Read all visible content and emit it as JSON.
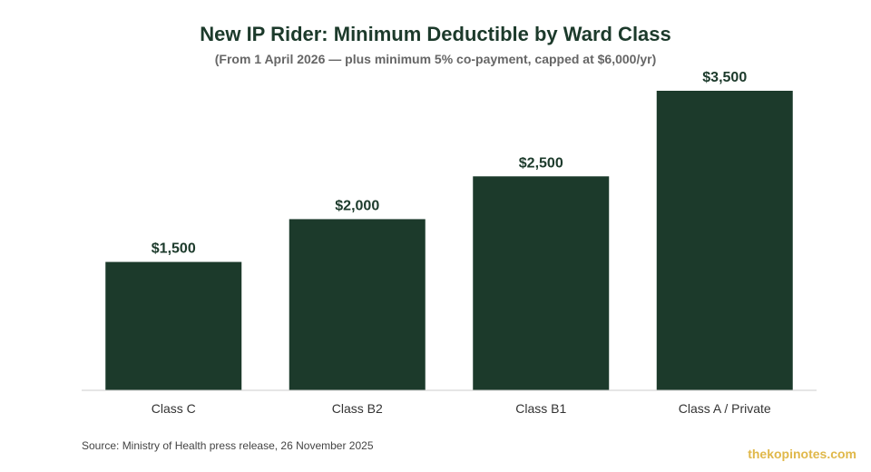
{
  "colors": {
    "bar": "#1c3a2b",
    "title": "#1c3a2b",
    "subtitle": "#666666",
    "axis": "#cccccc",
    "watermark": "#e0b84a"
  },
  "chart_data": {
    "type": "bar",
    "title": "New IP Rider: Minimum Deductible by Ward Class",
    "subtitle": "(From 1 April 2026 — plus minimum 5% co-payment, capped at $6,000/yr)",
    "categories": [
      "Class C",
      "Class B2",
      "Class B1",
      "Class A / Private"
    ],
    "values": [
      1500,
      2000,
      2500,
      3500
    ],
    "value_labels": [
      "$1,500",
      "$2,000",
      "$2,500",
      "$3,500"
    ],
    "xlabel": "",
    "ylabel": "",
    "ylim": [
      0,
      3500
    ],
    "grid": false,
    "legend": "none"
  },
  "footer": {
    "source": "Source: Ministry of Health press release, 26 November 2025",
    "watermark": "thekopinotes.com"
  }
}
